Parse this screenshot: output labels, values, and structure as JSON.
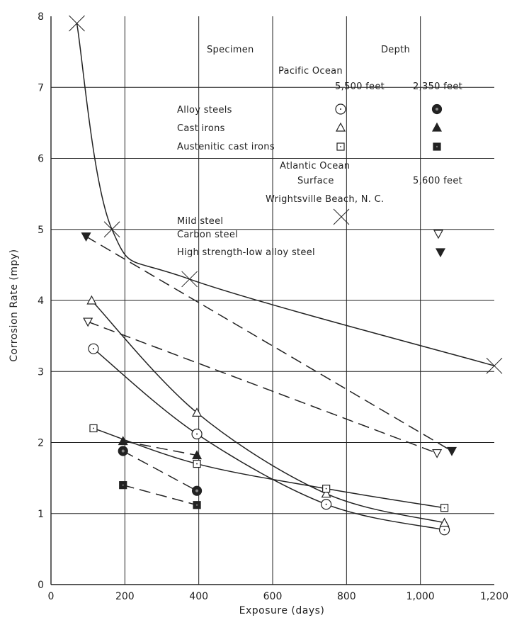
{
  "chart_data": {
    "type": "line",
    "xlabel": "Exposure (days)",
    "ylabel": "Corrosion Rate (mpy)",
    "xlim": [
      0,
      1200
    ],
    "ylim": [
      0,
      8
    ],
    "x_ticks": [
      "0",
      "200",
      "400",
      "600",
      "800",
      "1,000",
      "1,200"
    ],
    "y_ticks": [
      "0",
      "1",
      "2",
      "3",
      "4",
      "5",
      "6",
      "7",
      "8"
    ],
    "grid": true,
    "legend": {
      "placement": "top-right",
      "specimen_header": "Specimen",
      "depth_header": "Depth",
      "pacific_header": "Pacific Ocean",
      "pacific_col1": "5,500 feet",
      "pacific_col2": "2,350 feet",
      "alloy_steels": "Alloy steels",
      "cast_irons": "Cast irons",
      "austenitic": "Austenitic cast irons",
      "atlantic_header": "Atlantic Ocean",
      "surface_label": "Surface",
      "atlantic_depth": "5,600 feet",
      "wrightsville": "Wrightsville Beach, N. C.",
      "mild_steel": "Mild steel",
      "carbon_steel": "Carbon steel",
      "hsla_steel": "High strength-low alloy steel"
    },
    "series": [
      {
        "name": "Mild steel",
        "marker": "x",
        "line": "solid",
        "points": [
          [
            70,
            7.9
          ],
          [
            165,
            5.0
          ],
          [
            375,
            4.3
          ],
          [
            1200,
            3.08
          ]
        ]
      },
      {
        "name": "Carbon steel",
        "marker": "tri-down-open",
        "line": "dashed",
        "points": [
          [
            100,
            3.7
          ],
          [
            1045,
            1.85
          ]
        ]
      },
      {
        "name": "High strength-low alloy steel",
        "marker": "tri-down-filled",
        "line": "dashed",
        "points": [
          [
            95,
            4.9
          ],
          [
            1085,
            1.88
          ]
        ]
      },
      {
        "name": "Alloy steels 5,500 feet",
        "marker": "circle-open",
        "line": "solid",
        "points": [
          [
            115,
            3.32
          ],
          [
            395,
            2.12
          ],
          [
            745,
            1.13
          ],
          [
            1065,
            0.77
          ]
        ]
      },
      {
        "name": "Alloy steels 2,350 feet",
        "marker": "circle-filled",
        "line": "dashed",
        "points": [
          [
            195,
            1.88
          ],
          [
            395,
            1.32
          ]
        ]
      },
      {
        "name": "Cast irons 5,500 feet",
        "marker": "tri-up-open",
        "line": "solid",
        "points": [
          [
            110,
            4.0
          ],
          [
            395,
            2.42
          ],
          [
            745,
            1.28
          ],
          [
            1065,
            0.87
          ]
        ]
      },
      {
        "name": "Cast irons 2,350 feet",
        "marker": "tri-up-filled",
        "line": "dashed",
        "points": [
          [
            195,
            2.02
          ],
          [
            395,
            1.82
          ]
        ]
      },
      {
        "name": "Austenitic cast irons 5,500 feet",
        "marker": "square-open",
        "line": "solid",
        "points": [
          [
            115,
            2.2
          ],
          [
            395,
            1.7
          ],
          [
            745,
            1.35
          ],
          [
            1065,
            1.08
          ]
        ]
      },
      {
        "name": "Austenitic cast irons 2,350 feet",
        "marker": "square-filled",
        "line": "dashed",
        "points": [
          [
            195,
            1.4
          ],
          [
            395,
            1.12
          ]
        ]
      }
    ]
  }
}
